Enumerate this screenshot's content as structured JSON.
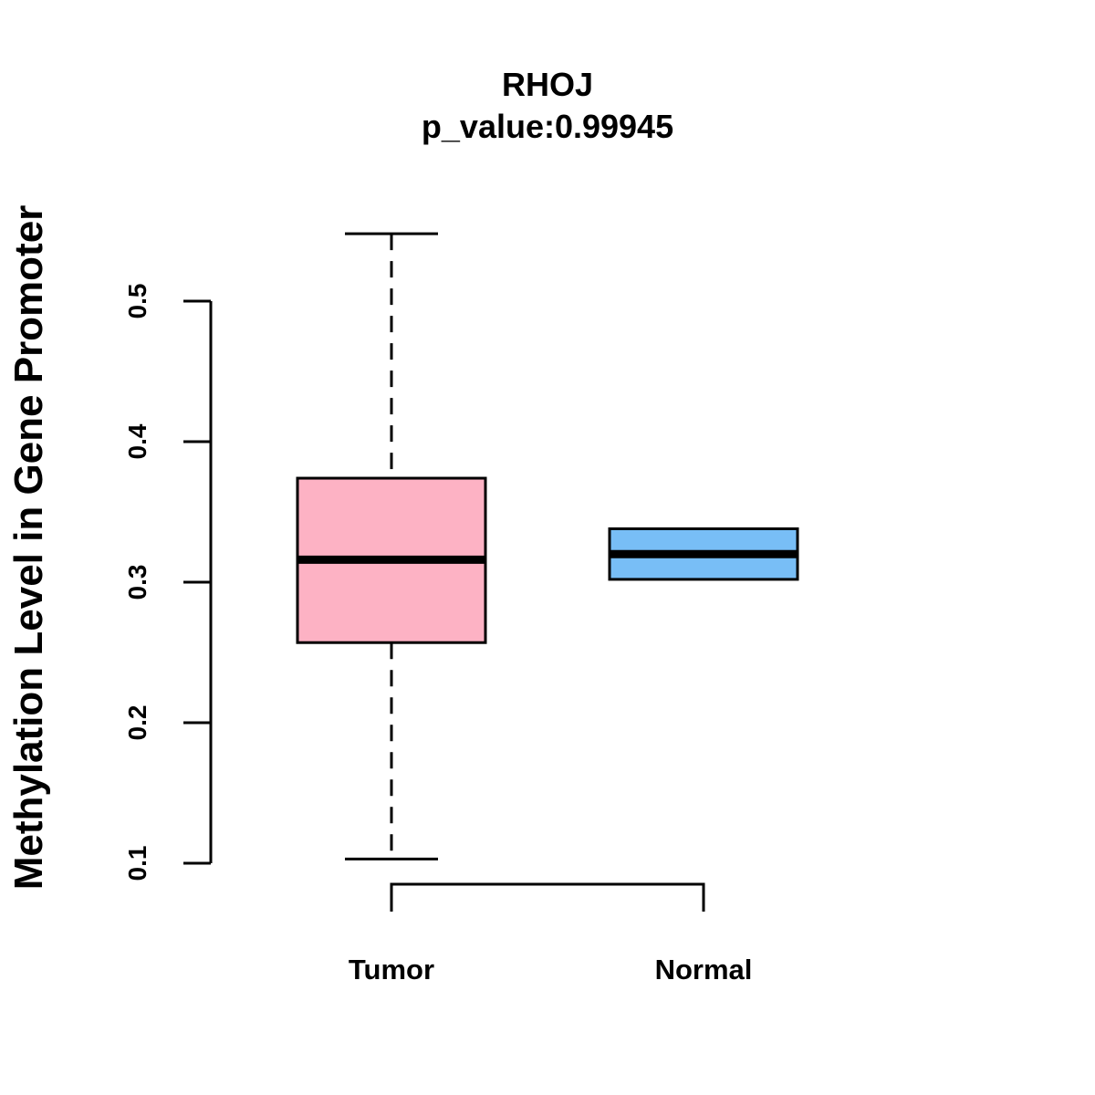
{
  "chart_data": {
    "type": "boxplot",
    "title": "RHOJ",
    "subtitle": "p_value:0.99945",
    "xlabel": "",
    "ylabel": "Methylation Level in Gene Promoter",
    "ylim": [
      0.1,
      0.5
    ],
    "yticks": [
      0.1,
      0.2,
      0.3,
      0.4,
      0.5
    ],
    "ytick_labels": [
      "0.1",
      "0.2",
      "0.3",
      "0.4",
      "0.5"
    ],
    "grid": false,
    "legend": "none",
    "categories": [
      "Tumor",
      "Normal"
    ],
    "boxes": [
      {
        "name": "Tumor",
        "whisker_low": 0.103,
        "q1": 0.257,
        "median": 0.316,
        "q3": 0.374,
        "whisker_high": 0.548,
        "color": "#FDB2C4"
      },
      {
        "name": "Normal",
        "whisker_low": 0.302,
        "q1": 0.302,
        "median": 0.32,
        "q3": 0.338,
        "whisker_high": 0.338,
        "color": "#78BEF6"
      }
    ]
  }
}
